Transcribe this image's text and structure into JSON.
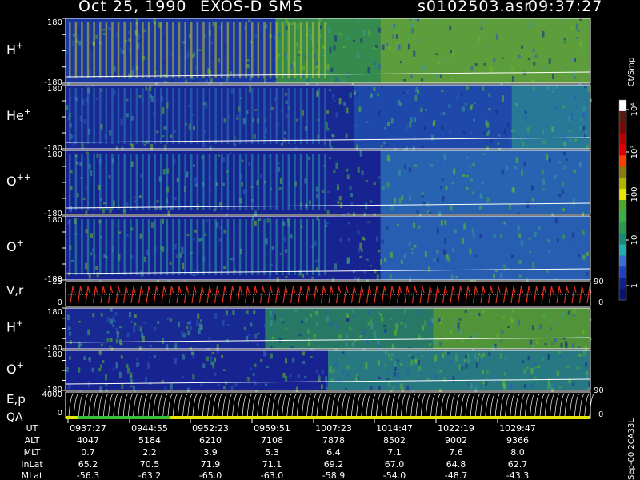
{
  "header": {
    "date": "Oct 25, 1990",
    "instrument": "EXOS-D SMS",
    "file": "s0102503.asr",
    "time": "09:37:27"
  },
  "colorbar": {
    "unit": "Ct/Smp",
    "ticks": [
      "10⁴",
      "10³",
      "100",
      "10",
      "1"
    ],
    "colors": [
      "#ffffff",
      "#5a1a10",
      "#7a0a0a",
      "#b40000",
      "#e00000",
      "#ff3c00",
      "#8a7a10",
      "#b4b400",
      "#e6e600",
      "#4aa82a",
      "#38b048",
      "#2a9a50",
      "#1a8a78",
      "#20b0b0",
      "#3a70d0",
      "#2040c0",
      "#10208a",
      "#0a1470"
    ]
  },
  "panels": [
    {
      "id": "h-plus",
      "label": "H+",
      "ymax": "180",
      "ymin": "-180",
      "base": "#1c2f9a",
      "bands": [
        {
          "from": 0,
          "to": 0.4,
          "c": "#1a3aa0"
        },
        {
          "from": 0.4,
          "to": 0.6,
          "c": "#3a9a40"
        },
        {
          "from": 0.6,
          "to": 1,
          "c": "#6ab02c"
        }
      ],
      "stripes": "#c8c82a"
    },
    {
      "id": "he-plus",
      "label": "He+",
      "ymax": "180",
      "ymin": "-180",
      "base": "#141f85",
      "bands": [
        {
          "from": 0,
          "to": 0.55,
          "c": "#1a2c95"
        },
        {
          "from": 0.55,
          "to": 0.85,
          "c": "#2050b0"
        },
        {
          "from": 0.85,
          "to": 1,
          "c": "#2a8a9a"
        }
      ],
      "stripes": "#2a7ab8"
    },
    {
      "id": "o-plus-plus",
      "label": "O++",
      "ymax": "180",
      "ymin": "-180",
      "base": "#141f85",
      "bands": [
        {
          "from": 0,
          "to": 0.6,
          "c": "#172592"
        },
        {
          "from": 0.6,
          "to": 1,
          "c": "#2a70b8"
        }
      ],
      "stripes": "#2a9ab0"
    },
    {
      "id": "o-plus",
      "label": "O+",
      "ymax": "180",
      "ymin": "-180",
      "base": "#141f85",
      "bands": [
        {
          "from": 0,
          "to": 0.6,
          "c": "#172592"
        },
        {
          "from": 0.6,
          "to": 1,
          "c": "#2a6ab8"
        }
      ],
      "stripes": "#2aa8a0"
    }
  ],
  "vr_panel": {
    "label": "V,r",
    "ymax": "25",
    "ymin": "0",
    "right_top": "90",
    "right_bottom": "0"
  },
  "lower_panels": [
    {
      "id": "h-plus-2",
      "label": "H+",
      "ymax": "180",
      "ymin": "-180",
      "base": "#141f85",
      "bands": [
        {
          "from": 0,
          "to": 0.38,
          "c": "#1a2c95"
        },
        {
          "from": 0.38,
          "to": 0.7,
          "c": "#2a8a60"
        },
        {
          "from": 0.7,
          "to": 1,
          "c": "#5aa82a"
        }
      ]
    },
    {
      "id": "o-plus-2",
      "label": "O+",
      "ymax": "180",
      "ymin": "-180",
      "base": "#141f85",
      "bands": [
        {
          "from": 0,
          "to": 0.5,
          "c": "#172592"
        },
        {
          "from": 0.5,
          "to": 1,
          "c": "#2a8a80"
        }
      ]
    }
  ],
  "ep_panel": {
    "label_top": "E,p",
    "label_bottom": "QA",
    "ymax": "4000",
    "ymin": "0",
    "right_top": "90",
    "right_bottom": "0"
  },
  "table": {
    "row_labels": [
      "UT",
      "ALT",
      "MLT",
      "InLat",
      "MLat"
    ],
    "columns": [
      [
        "0937:27",
        "4047",
        "0.7",
        "65.2",
        "-56.3"
      ],
      [
        "0944:55",
        "5184",
        "2.2",
        "70.5",
        "-63.2"
      ],
      [
        "0952:23",
        "6210",
        "3.9",
        "71.9",
        "-65.0"
      ],
      [
        "0959:51",
        "7108",
        "5.3",
        "71.1",
        "-63.0"
      ],
      [
        "1007:23",
        "7878",
        "6.4",
        "69.2",
        "-58.9"
      ],
      [
        "1014:47",
        "8502",
        "7.1",
        "67.0",
        "-54.0"
      ],
      [
        "1022:19",
        "9002",
        "7.6",
        "64.8",
        "-48.7"
      ],
      [
        "1029:47",
        "9366",
        "8.0",
        "62.7",
        "-43.3"
      ]
    ]
  },
  "footer": "Sep-00  2CA33L"
}
